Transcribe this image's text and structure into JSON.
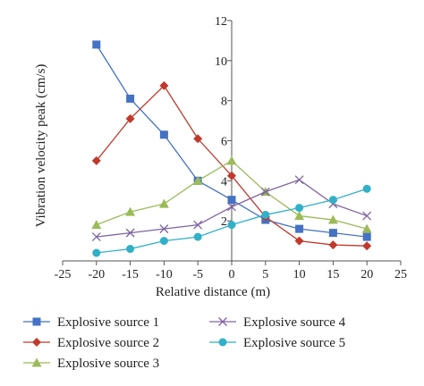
{
  "chart_data": {
    "type": "line",
    "title": "",
    "xlabel": "Relative distance (m)",
    "ylabel": "Vibration velocity peak (cm/s)",
    "xlim": [
      -25,
      25
    ],
    "ylim": [
      0,
      12
    ],
    "xticks": [
      -25,
      -20,
      -15,
      -10,
      -5,
      0,
      5,
      10,
      15,
      20,
      25
    ],
    "yticks": [
      0,
      2,
      4,
      6,
      8,
      10,
      12
    ],
    "grid": false,
    "legend_position": "bottom",
    "x": [
      -20,
      -15,
      -10,
      -5,
      0,
      5,
      10,
      15,
      20
    ],
    "series": [
      {
        "name": "Explosive source 1",
        "color": "#4472C4",
        "marker": "square",
        "values": [
          10.8,
          8.1,
          6.3,
          4.0,
          3.05,
          2.05,
          1.6,
          1.4,
          1.2
        ]
      },
      {
        "name": "Explosive source 2",
        "color": "#C0392B",
        "marker": "diamond",
        "values": [
          5.0,
          7.1,
          8.75,
          6.1,
          4.25,
          2.2,
          1.0,
          0.8,
          0.75
        ]
      },
      {
        "name": "Explosive source 3",
        "color": "#9BBB59",
        "marker": "triangle",
        "values": [
          1.8,
          2.45,
          2.85,
          4.0,
          5.0,
          3.45,
          2.25,
          2.05,
          1.6
        ]
      },
      {
        "name": "Explosive source 4",
        "color": "#8064A2",
        "marker": "x",
        "values": [
          1.2,
          1.4,
          1.6,
          1.8,
          2.7,
          3.45,
          4.05,
          2.85,
          2.25
        ]
      },
      {
        "name": "Explosive source 5",
        "color": "#31B0C8",
        "marker": "circle",
        "values": [
          0.4,
          0.6,
          1.0,
          1.2,
          1.8,
          2.3,
          2.65,
          3.05,
          3.6
        ]
      }
    ]
  }
}
